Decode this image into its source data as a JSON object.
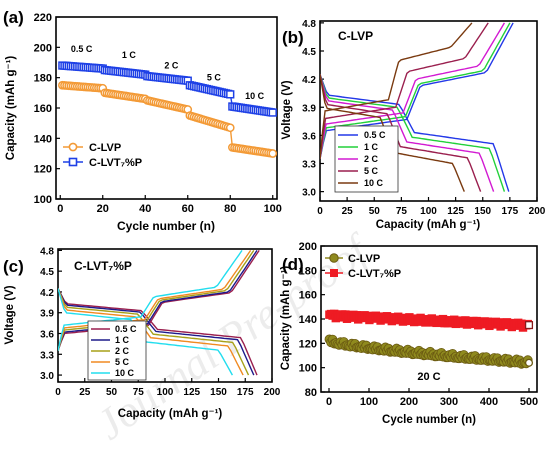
{
  "colors": {
    "clvp_orange": "#f39a36",
    "clvt_blue": "#1e40e6",
    "clvp_d": "#8f8a1e",
    "clvt_d": "#ee1b23",
    "rate_blue": "#2338e8",
    "rate_green": "#22d13a",
    "rate_magenta": "#d21ad2",
    "rate_maroon": "#9a1f4e",
    "rate_brown": "#7a3a10",
    "rate_navy": "#1d1a8a",
    "rate_olive": "#a7a019",
    "rate_orange": "#f08a22",
    "rate_cyan": "#22ddee",
    "marker_ring": "#6b5a12"
  },
  "watermark": "Journal Pre-proof",
  "chart_data": [
    {
      "id": "a",
      "panel_label": "(a)",
      "type": "scatter",
      "xlabel": "Cycle number (n)",
      "ylabel": "Capacity (mAh g⁻¹)",
      "xlim": [
        -2,
        102
      ],
      "ylim": [
        100,
        220
      ],
      "xticks": [
        0,
        20,
        40,
        60,
        80,
        100
      ],
      "yticks": [
        100,
        120,
        140,
        160,
        180,
        200,
        220
      ],
      "legend_position": "bottom-left",
      "annotations": [
        {
          "text": "0.5 C",
          "x": 5,
          "y": 197
        },
        {
          "text": "1 C",
          "x": 29,
          "y": 193
        },
        {
          "text": "2 C",
          "x": 49,
          "y": 186
        },
        {
          "text": "5 C",
          "x": 69,
          "y": 178
        },
        {
          "text": "10 C",
          "x": 87,
          "y": 166
        }
      ],
      "series": [
        {
          "name": "C-LVP",
          "marker": "circle",
          "segments": [
            {
              "x0": 1,
              "x1": 20,
              "y0": 175,
              "y1": 173
            },
            {
              "x0": 21,
              "x1": 40,
              "y0": 170,
              "y1": 166
            },
            {
              "x0": 41,
              "x1": 60,
              "y0": 165,
              "y1": 159
            },
            {
              "x0": 61,
              "x1": 80,
              "y0": 155,
              "y1": 147
            },
            {
              "x0": 81,
              "x1": 100,
              "y0": 134,
              "y1": 130
            }
          ]
        },
        {
          "name": "C-LVT₇%P",
          "marker": "square",
          "segments": [
            {
              "x0": 1,
              "x1": 20,
              "y0": 188,
              "y1": 186
            },
            {
              "x0": 21,
              "x1": 40,
              "y0": 185,
              "y1": 182
            },
            {
              "x0": 41,
              "x1": 60,
              "y0": 181,
              "y1": 178
            },
            {
              "x0": 61,
              "x1": 80,
              "y0": 175,
              "y1": 169
            },
            {
              "x0": 81,
              "x1": 100,
              "y0": 161,
              "y1": 157
            }
          ]
        }
      ]
    },
    {
      "id": "b",
      "panel_label": "(b)",
      "title": "C-LVP",
      "type": "line",
      "xlabel": "Capacity (mAh g⁻¹)",
      "ylabel": "Voltage (V)",
      "xlim": [
        0,
        200
      ],
      "ylim": [
        2.9,
        4.82
      ],
      "xticks": [
        0,
        25,
        50,
        75,
        100,
        125,
        150,
        175,
        200
      ],
      "yticks": [
        3.0,
        3.3,
        3.6,
        3.9,
        4.2,
        4.5,
        4.8
      ],
      "legend_position": "bottom-left",
      "series": [
        {
          "name": "0.5 C",
          "color_key": "rate_blue",
          "charge_capacity": 178,
          "discharge_capacity": 174,
          "charge_plateaus": [
            3.65,
            4.13
          ],
          "discharge_plateaus": [
            3.98,
            3.57
          ]
        },
        {
          "name": "1 C",
          "color_key": "rate_green",
          "charge_capacity": 175,
          "discharge_capacity": 170,
          "charge_plateaus": [
            3.68,
            4.15
          ],
          "discharge_plateaus": [
            3.95,
            3.52
          ]
        },
        {
          "name": "2 C",
          "color_key": "rate_magenta",
          "charge_capacity": 170,
          "discharge_capacity": 160,
          "charge_plateaus": [
            3.72,
            4.2
          ],
          "discharge_plateaus": [
            3.92,
            3.47
          ]
        },
        {
          "name": "5 C",
          "color_key": "rate_maroon",
          "charge_capacity": 155,
          "discharge_capacity": 148,
          "charge_plateaus": [
            3.78,
            4.28
          ],
          "discharge_plateaus": [
            3.88,
            3.42
          ]
        },
        {
          "name": "10 C",
          "color_key": "rate_brown",
          "charge_capacity": 140,
          "discharge_capacity": 133,
          "charge_plateaus": [
            3.86,
            4.4
          ],
          "discharge_plateaus": [
            3.84,
            3.36
          ]
        }
      ]
    },
    {
      "id": "c",
      "panel_label": "(c)",
      "title": "C-LVT₇%P",
      "type": "line",
      "xlabel": "Capacity (mAh g⁻¹)",
      "ylabel": "Voltage (V)",
      "xlim": [
        0,
        200
      ],
      "ylim": [
        2.9,
        4.82
      ],
      "xticks": [
        0,
        25,
        50,
        75,
        100,
        125,
        150,
        175,
        200
      ],
      "yticks": [
        3.0,
        3.3,
        3.6,
        3.9,
        4.2,
        4.5,
        4.8
      ],
      "legend_position": "bottom-center",
      "series": [
        {
          "name": "0.5 C",
          "color_key": "rate_maroon",
          "charge_capacity": 188,
          "discharge_capacity": 186,
          "charge_plateaus": [
            3.6,
            4.05
          ],
          "discharge_plateaus": [
            3.98,
            3.6
          ]
        },
        {
          "name": "1 C",
          "color_key": "rate_navy",
          "charge_capacity": 186,
          "discharge_capacity": 183,
          "charge_plateaus": [
            3.62,
            4.06
          ],
          "discharge_plateaus": [
            3.96,
            3.57
          ]
        },
        {
          "name": "2 C",
          "color_key": "rate_olive",
          "charge_capacity": 183,
          "discharge_capacity": 178,
          "charge_plateaus": [
            3.65,
            4.08
          ],
          "discharge_plateaus": [
            3.93,
            3.53
          ]
        },
        {
          "name": "5 C",
          "color_key": "rate_orange",
          "charge_capacity": 180,
          "discharge_capacity": 173,
          "charge_plateaus": [
            3.68,
            4.1
          ],
          "discharge_plateaus": [
            3.89,
            3.48
          ]
        },
        {
          "name": "10 C",
          "color_key": "rate_cyan",
          "charge_capacity": 172,
          "discharge_capacity": 163,
          "charge_plateaus": [
            3.72,
            4.13
          ],
          "discharge_plateaus": [
            3.85,
            3.42
          ]
        }
      ]
    },
    {
      "id": "d",
      "panel_label": "(d)",
      "type": "scatter",
      "xlabel": "Cycle number (n)",
      "ylabel": "Capacity (mAh g⁻¹)",
      "xlim": [
        -20,
        520
      ],
      "ylim": [
        80,
        200
      ],
      "xticks": [
        0,
        100,
        200,
        300,
        400,
        500
      ],
      "yticks": [
        80,
        100,
        120,
        140,
        160,
        180,
        200
      ],
      "legend_position": "top-left",
      "annotations": [
        {
          "text": "20 C",
          "x": 250,
          "y": 90
        }
      ],
      "series": [
        {
          "name": "C-LVP",
          "marker": "circle",
          "start": 122,
          "end": 104,
          "n_points": 500
        },
        {
          "name": "C-LVT₇%P",
          "marker": "square",
          "start": 143,
          "end": 135,
          "n_points": 500
        }
      ]
    }
  ]
}
